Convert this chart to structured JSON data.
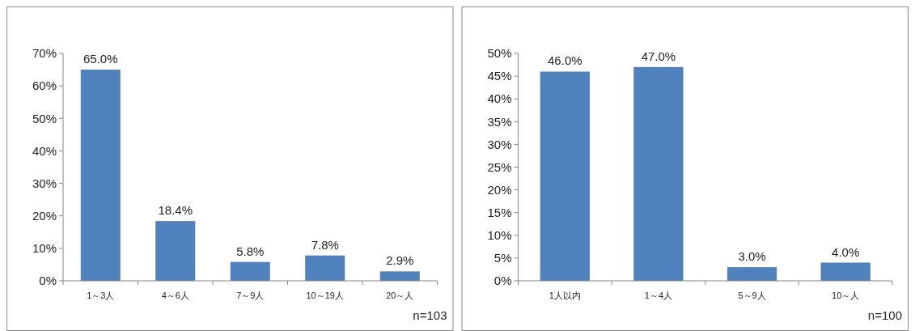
{
  "chart_data": [
    {
      "type": "bar",
      "categories": [
        "1～3人",
        "4～6人",
        "7～9人",
        "10～19人",
        "20～人"
      ],
      "values": [
        65.0,
        18.4,
        5.8,
        7.8,
        2.9
      ],
      "value_labels": [
        "65.0%",
        "18.4%",
        "5.8%",
        "7.8%",
        "2.9%"
      ],
      "color": "#4f81bd",
      "ylim": [
        0,
        70
      ],
      "yticks": [
        {
          "value": 0,
          "label": "0%"
        },
        {
          "value": 10,
          "label": "10%"
        },
        {
          "value": 20,
          "label": "20%"
        },
        {
          "value": 30,
          "label": "30%"
        },
        {
          "value": 40,
          "label": "40%"
        },
        {
          "value": 50,
          "label": "50%"
        },
        {
          "value": 60,
          "label": "60%"
        },
        {
          "value": 70,
          "label": "70%"
        }
      ],
      "annotations": [
        "n=103"
      ],
      "grid": false
    },
    {
      "type": "bar",
      "categories": [
        "1人以内",
        "1～4人",
        "5～9人",
        "10～人"
      ],
      "values": [
        46.0,
        47.0,
        3.0,
        4.0
      ],
      "value_labels": [
        "46.0%",
        "47.0%",
        "3.0%",
        "4.0%"
      ],
      "color": "#4f81bd",
      "ylim": [
        0,
        50
      ],
      "yticks": [
        {
          "value": 0,
          "label": "0%"
        },
        {
          "value": 5,
          "label": "5%"
        },
        {
          "value": 10,
          "label": "10%"
        },
        {
          "value": 15,
          "label": "15%"
        },
        {
          "value": 20,
          "label": "20%"
        },
        {
          "value": 25,
          "label": "25%"
        },
        {
          "value": 30,
          "label": "30%"
        },
        {
          "value": 35,
          "label": "35%"
        },
        {
          "value": 40,
          "label": "40%"
        },
        {
          "value": 45,
          "label": "45%"
        },
        {
          "value": 50,
          "label": "50%"
        }
      ],
      "annotations": [
        "n=100"
      ],
      "grid": false
    }
  ]
}
